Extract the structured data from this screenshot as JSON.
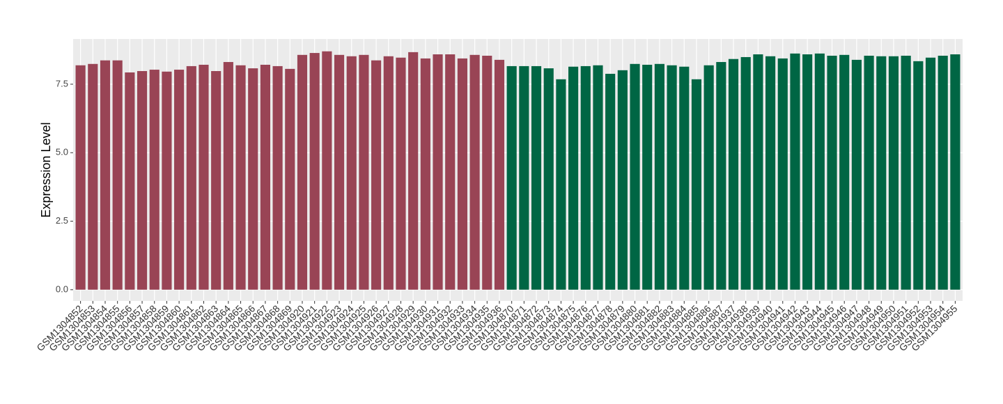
{
  "chart_data": {
    "type": "bar",
    "y_label": "Expression Level",
    "categories": [
      "GSM1304852",
      "GSM1304853",
      "GSM1304854",
      "GSM1304855",
      "GSM1304856",
      "GSM1304857",
      "GSM1304858",
      "GSM1304859",
      "GSM1304860",
      "GSM1304861",
      "GSM1304862",
      "GSM1304863",
      "GSM1304864",
      "GSM1304865",
      "GSM1304866",
      "GSM1304867",
      "GSM1304868",
      "GSM1304869",
      "GSM1304920",
      "GSM1304921",
      "GSM1304922",
      "GSM1304923",
      "GSM1304924",
      "GSM1304925",
      "GSM1304926",
      "GSM1304927",
      "GSM1304928",
      "GSM1304929",
      "GSM1304930",
      "GSM1304931",
      "GSM1304932",
      "GSM1304933",
      "GSM1304934",
      "GSM1304935",
      "GSM1304936",
      "GSM1304870",
      "GSM1304871",
      "GSM1304872",
      "GSM1304873",
      "GSM1304874",
      "GSM1304875",
      "GSM1304876",
      "GSM1304877",
      "GSM1304878",
      "GSM1304879",
      "GSM1304880",
      "GSM1304881",
      "GSM1304882",
      "GSM1304883",
      "GSM1304884",
      "GSM1304885",
      "GSM1304886",
      "GSM1304887",
      "GSM1304937",
      "GSM1304938",
      "GSM1304939",
      "GSM1304940",
      "GSM1304941",
      "GSM1304942",
      "GSM1304943",
      "GSM1304944",
      "GSM1304945",
      "GSM1304946",
      "GSM1304947",
      "GSM1304948",
      "GSM1304949",
      "GSM1304950",
      "GSM1304951",
      "GSM1304952",
      "GSM1304953",
      "GSM1304954",
      "GSM1304955"
    ],
    "values": [
      8.19,
      8.24,
      8.37,
      8.37,
      7.93,
      7.98,
      8.03,
      7.96,
      8.03,
      8.16,
      8.21,
      7.98,
      8.31,
      8.19,
      8.08,
      8.21,
      8.16,
      8.06,
      8.57,
      8.64,
      8.7,
      8.57,
      8.52,
      8.57,
      8.37,
      8.52,
      8.47,
      8.67,
      8.44,
      8.59,
      8.59,
      8.44,
      8.57,
      8.54,
      8.39,
      8.16,
      8.16,
      8.16,
      8.08,
      7.68,
      8.14,
      8.16,
      8.19,
      7.88,
      8.01,
      8.24,
      8.21,
      8.24,
      8.19,
      8.14,
      7.68,
      8.19,
      8.31,
      8.42,
      8.49,
      8.59,
      8.52,
      8.44,
      8.62,
      8.59,
      8.62,
      8.54,
      8.57,
      8.39,
      8.54,
      8.52,
      8.52,
      8.54,
      8.34,
      8.47,
      8.54,
      8.59
    ],
    "colors": [
      "#994455",
      "#994455",
      "#994455",
      "#994455",
      "#994455",
      "#994455",
      "#994455",
      "#994455",
      "#994455",
      "#994455",
      "#994455",
      "#994455",
      "#994455",
      "#994455",
      "#994455",
      "#994455",
      "#994455",
      "#994455",
      "#994455",
      "#994455",
      "#994455",
      "#994455",
      "#994455",
      "#994455",
      "#994455",
      "#994455",
      "#994455",
      "#994455",
      "#994455",
      "#994455",
      "#994455",
      "#994455",
      "#994455",
      "#994455",
      "#994455",
      "#006644",
      "#006644",
      "#006644",
      "#006644",
      "#006644",
      "#006644",
      "#006644",
      "#006644",
      "#006644",
      "#006644",
      "#006644",
      "#006644",
      "#006644",
      "#006644",
      "#006644",
      "#006644",
      "#006644",
      "#006644",
      "#006644",
      "#006644",
      "#006644",
      "#006644",
      "#006644",
      "#006644",
      "#006644",
      "#006644",
      "#006644",
      "#006644",
      "#006644",
      "#006644",
      "#006644",
      "#006644",
      "#006644",
      "#006644",
      "#006644",
      "#006644",
      "#006644"
    ],
    "ylim": [
      -0.41,
      9.15
    ],
    "yticks": [
      {
        "value": 0,
        "label": "0.0"
      },
      {
        "value": 2.5,
        "label": "2.5"
      },
      {
        "value": 5,
        "label": "5.0"
      },
      {
        "value": 7.5,
        "label": "7.5"
      }
    ],
    "grid": true
  }
}
